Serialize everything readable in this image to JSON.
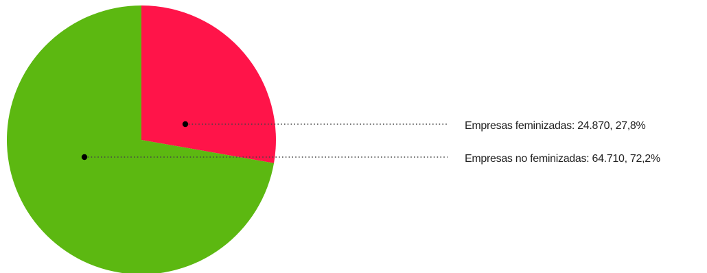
{
  "chart_data": {
    "type": "pie",
    "slices": [
      {
        "label": "Empresas feminizadas: 24.870, 27,8%",
        "value": 24870,
        "percent": 27.8,
        "color": "#ff1449"
      },
      {
        "label": "Empresas no feminizadas: 64.710, 72,2%",
        "value": 64710,
        "percent": 72.2,
        "color": "#5cb811"
      }
    ],
    "start_angle_deg": 0,
    "direction": "clockwise",
    "legend": "right, dotted leader lines"
  }
}
